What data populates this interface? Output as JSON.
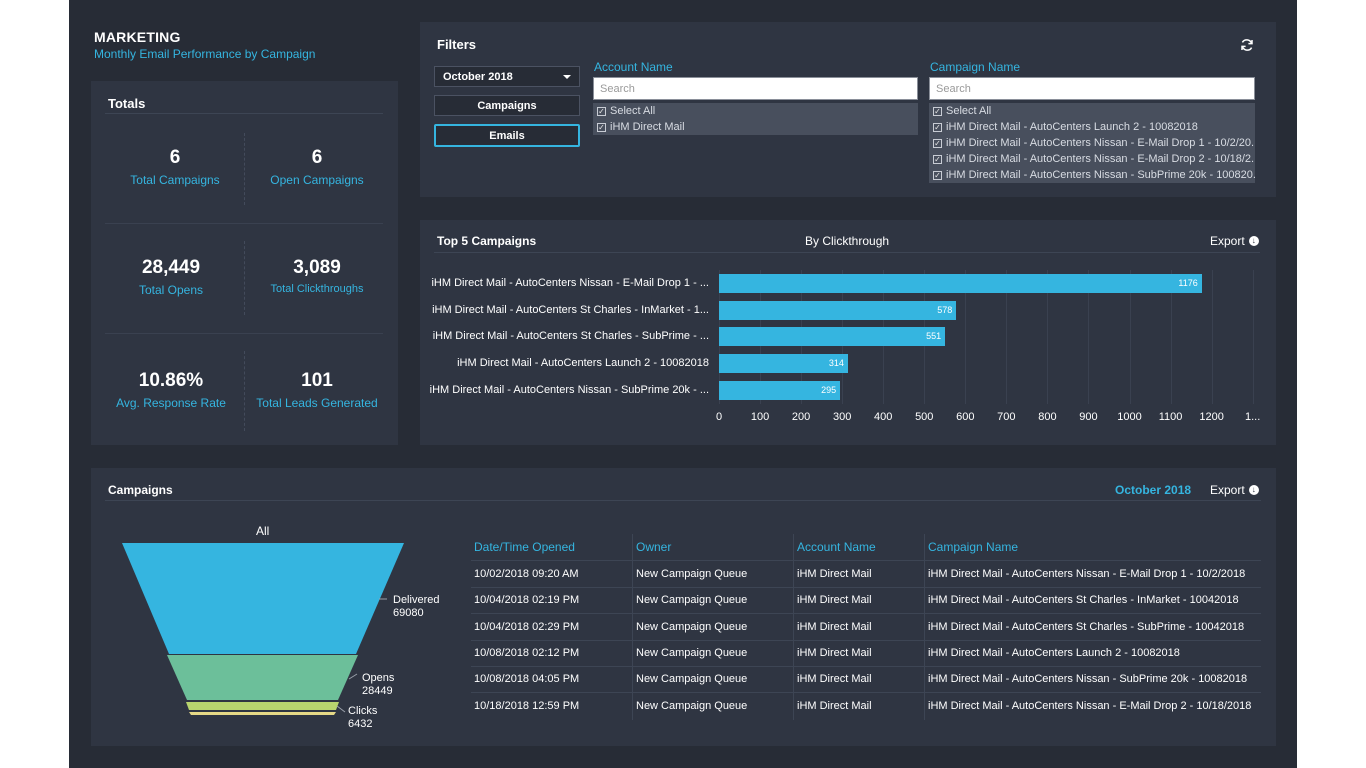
{
  "header": {
    "title": "MARKETING",
    "subtitle": "Monthly Email Performance by Campaign"
  },
  "totals": {
    "title": "Totals",
    "cells": [
      {
        "value": "6",
        "label": "Total Campaigns"
      },
      {
        "value": "6",
        "label": "Open Campaigns"
      },
      {
        "value": "28,449",
        "label": "Total Opens"
      },
      {
        "value": "3,089",
        "label": "Total Clickthroughs"
      },
      {
        "value": "10.86%",
        "label": "Avg. Response Rate"
      },
      {
        "value": "101",
        "label": "Total Leads Generated"
      }
    ]
  },
  "filters": {
    "title": "Filters",
    "period": "October 2018",
    "buttons": [
      "Campaigns",
      "Emails"
    ],
    "active_button": "Emails",
    "account": {
      "label": "Account Name",
      "placeholder": "Search",
      "items": [
        "Select All",
        "iHM Direct Mail"
      ]
    },
    "campaign": {
      "label": "Campaign Name",
      "placeholder": "Search",
      "items": [
        "Select All",
        "iHM Direct Mail - AutoCenters Launch 2 - 10082018",
        "iHM Direct Mail - AutoCenters Nissan - E-Mail Drop 1 - 10/2/20...",
        "iHM Direct Mail - AutoCenters Nissan - E-Mail Drop 2 - 10/18/2...",
        "iHM Direct Mail - AutoCenters Nissan - SubPrime 20k - 100820..."
      ]
    }
  },
  "top5": {
    "title": "Top 5 Campaigns",
    "subtitle": "By Clickthrough",
    "export_label": "Export"
  },
  "chart_data": {
    "type": "bar",
    "orientation": "horizontal",
    "categories": [
      "iHM Direct Mail - AutoCenters Nissan - E-Mail Drop 1 - ...",
      "iHM Direct Mail - AutoCenters St Charles - InMarket - 1...",
      "iHM Direct Mail - AutoCenters St Charles - SubPrime - ...",
      "iHM Direct Mail - AutoCenters Launch 2 - 10082018",
      "iHM Direct Mail - AutoCenters Nissan - SubPrime 20k - ..."
    ],
    "values": [
      1176,
      578,
      551,
      314,
      295
    ],
    "xticks": [
      "0",
      "100",
      "200",
      "300",
      "400",
      "500",
      "600",
      "700",
      "800",
      "900",
      "1000",
      "1100",
      "1200",
      "1..."
    ],
    "xlim": [
      0,
      1300
    ],
    "bar_color": "#35b5e0",
    "grid": true
  },
  "campaigns": {
    "title": "Campaigns",
    "period": "October 2018",
    "export_label": "Export",
    "funnel": {
      "title": "All",
      "stages": [
        {
          "name": "Delivered",
          "value": "69080"
        },
        {
          "name": "Opens",
          "value": "28449"
        },
        {
          "name": "Clicks",
          "value": "6432"
        }
      ],
      "colors": [
        "#35b5e0",
        "#6cbf9a",
        "#b8d46e",
        "#e6d987"
      ]
    },
    "columns": [
      "Date/Time Opened",
      "Owner",
      "Account Name",
      "Campaign Name"
    ],
    "rows": [
      [
        "10/02/2018 09:20 AM",
        "New Campaign Queue",
        "iHM Direct Mail",
        "iHM Direct Mail - AutoCenters Nissan - E-Mail Drop 1 - 10/2/2018"
      ],
      [
        "10/04/2018 02:19 PM",
        "New Campaign Queue",
        "iHM Direct Mail",
        "iHM Direct Mail - AutoCenters St Charles - InMarket - 10042018"
      ],
      [
        "10/04/2018 02:29 PM",
        "New Campaign Queue",
        "iHM Direct Mail",
        "iHM Direct Mail - AutoCenters St Charles - SubPrime - 10042018"
      ],
      [
        "10/08/2018 02:12 PM",
        "New Campaign Queue",
        "iHM Direct Mail",
        "iHM Direct Mail - AutoCenters Launch 2 - 10082018"
      ],
      [
        "10/08/2018 04:05 PM",
        "New Campaign Queue",
        "iHM Direct Mail",
        "iHM Direct Mail - AutoCenters Nissan - SubPrime 20k - 10082018"
      ],
      [
        "10/18/2018 12:59 PM",
        "New Campaign Queue",
        "iHM Direct Mail",
        "iHM Direct Mail - AutoCenters Nissan - E-Mail Drop 2 - 10/18/2018"
      ]
    ]
  }
}
